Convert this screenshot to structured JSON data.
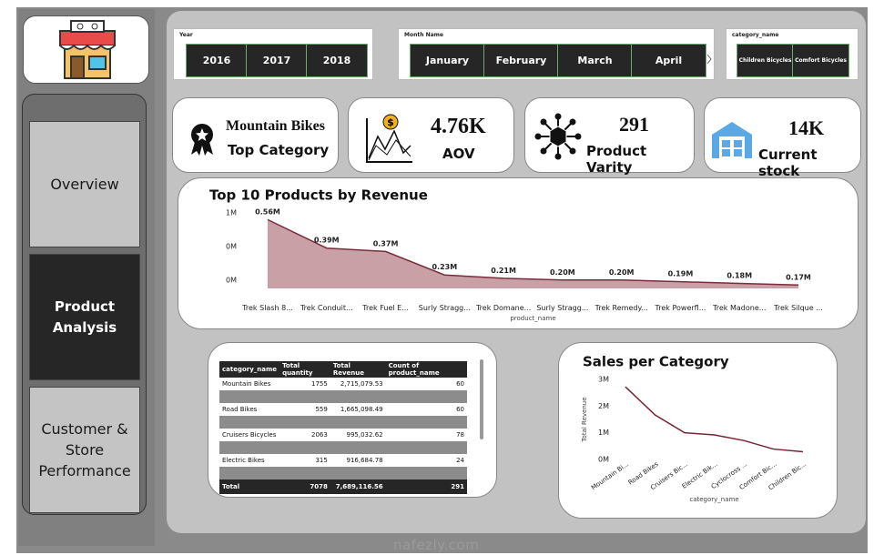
{
  "sidebar": {
    "nav": [
      "Overview",
      "Product Analysis",
      "Customer & Store Performance"
    ]
  },
  "filters": [
    {
      "title": "Year",
      "options": [
        "2016",
        "2017",
        "2018"
      ]
    },
    {
      "title": "Month Name",
      "options": [
        "January",
        "February",
        "March",
        "April"
      ]
    },
    {
      "title": "category_name",
      "options": [
        "Children Bicycles",
        "Comfort Bicycles"
      ]
    }
  ],
  "kpis": [
    {
      "value": "Mountain Bikes",
      "label": "Top Category"
    },
    {
      "value": "4.76K",
      "label": "AOV"
    },
    {
      "value": "291",
      "label": "Product Varity"
    },
    {
      "value": "14K",
      "label": "Current stock"
    }
  ],
  "table": {
    "columns": [
      "category_name",
      "Total quantity",
      "Total Revenue",
      "Count of product_name"
    ],
    "rows": [
      [
        "Mountain Bikes",
        "1755",
        "2,715,079.53",
        "60"
      ],
      [
        "Road Bikes",
        "559",
        "1,665,098.49",
        "60"
      ],
      [
        "Cruisers Bicycles",
        "2063",
        "995,032.62",
        "78"
      ],
      [
        "Electric Bikes",
        "315",
        "916,684.78",
        "24"
      ]
    ],
    "total": [
      "Total",
      "7078",
      "7,689,116.56",
      "291"
    ]
  },
  "chart_data": [
    {
      "type": "area",
      "title": "Top 10 Products by Revenue",
      "x_label": "product_name",
      "categories": [
        "Trek Slash 8...",
        "Trek Conduit...",
        "Trek Fuel E...",
        "Surly Stragg...",
        "Trek Domane...",
        "Surly Stragg...",
        "Trek Remedy...",
        "Trek Powerfl...",
        "Trek Madone...",
        "Trek Silque ..."
      ],
      "values": [
        0.56,
        0.39,
        0.37,
        0.23,
        0.21,
        0.2,
        0.2,
        0.19,
        0.18,
        0.17
      ],
      "value_labels": [
        "0.56M",
        "0.39M",
        "0.37M",
        "0.23M",
        "0.21M",
        "0.20M",
        "0.20M",
        "0.19M",
        "0.18M",
        "0.17M"
      ],
      "ylim": [
        0.15,
        0.6
      ],
      "yticks": [
        {
          "value": 0.2,
          "label": "0M"
        },
        {
          "value": 0.4,
          "label": "0M"
        },
        {
          "value": 0.6,
          "label": "1M"
        }
      ],
      "color": "#7a2d3a",
      "fill": "#c9a0a5"
    },
    {
      "type": "line",
      "title": "Sales per Category",
      "x_label": "category_name",
      "y_label": "Total Revenue",
      "categories": [
        "Mountain Bi...",
        "Road Bikes",
        "Cruisers Bic...",
        "Electric Bik...",
        "Cyclocross ...",
        "Comfort Bic...",
        "Children Bic..."
      ],
      "values": [
        2.72,
        1.67,
        1.0,
        0.92,
        0.71,
        0.39,
        0.29
      ],
      "ylim": [
        0,
        3
      ],
      "yticks": [
        {
          "value": 0,
          "label": "0M"
        },
        {
          "value": 1,
          "label": "1M"
        },
        {
          "value": 2,
          "label": "2M"
        },
        {
          "value": 3,
          "label": "3M"
        }
      ],
      "color": "#7a2232"
    }
  ],
  "watermark": "nafezly.com"
}
